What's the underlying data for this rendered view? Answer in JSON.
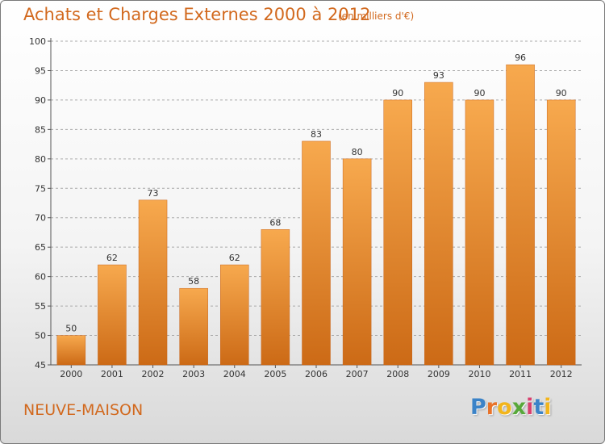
{
  "title": "Achats et Charges Externes 2000 à 2012",
  "subtitle": "(en milliers d'€)",
  "town": "NEUVE-MAISON",
  "logo": {
    "letters": [
      "P",
      "r",
      "o",
      "x",
      "i",
      "t",
      "i"
    ],
    "colors": [
      "#3b83c8",
      "#e8732a",
      "#f2b51c",
      "#58a83a",
      "#d8406e",
      "#3b83c8",
      "#f2b51c"
    ]
  },
  "colors": {
    "title": "#d2691e",
    "bar_top": "#f7a94e",
    "bar_bottom": "#cc6a16",
    "axis": "#555555",
    "grid": "#aaaaaa"
  },
  "chart_data": {
    "type": "bar",
    "categories": [
      "2000",
      "2001",
      "2002",
      "2003",
      "2004",
      "2005",
      "2006",
      "2007",
      "2008",
      "2009",
      "2010",
      "2011",
      "2012"
    ],
    "values": [
      50,
      62,
      73,
      58,
      62,
      68,
      83,
      80,
      90,
      93,
      90,
      96,
      90
    ],
    "ylim": [
      45,
      100
    ],
    "yticks": [
      45,
      50,
      55,
      60,
      65,
      70,
      75,
      80,
      85,
      90,
      95,
      100
    ],
    "title": "Achats et Charges Externes 2000 à 2012",
    "xlabel": "",
    "ylabel": "",
    "grid": true,
    "data_labels": true
  }
}
